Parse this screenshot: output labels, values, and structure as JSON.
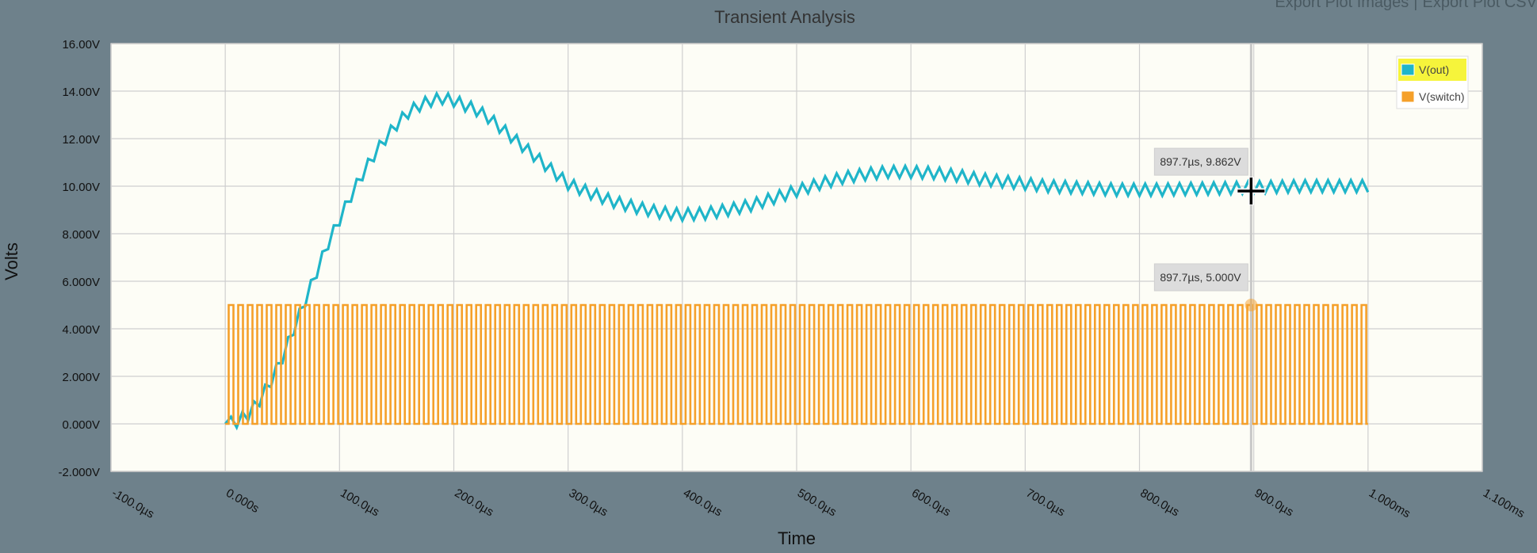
{
  "toolbar": {
    "export_images_label": "Export Plot Images",
    "separator": "|",
    "export_csv_label": "Export Plot CSV"
  },
  "tooltips": [
    {
      "text": "897.7µs, 9.862V",
      "series": "V(out)",
      "x": 897.7,
      "y": 9.862
    },
    {
      "text": "897.7µs, 5.000V",
      "series": "V(switch)",
      "x": 897.7,
      "y": 5.0
    }
  ],
  "cursor_time_us": 897.7,
  "chart_data": {
    "type": "line",
    "title": "Transient Analysis",
    "xlabel": "Time",
    "ylabel": "Volts",
    "xlim": [
      -100,
      1100
    ],
    "ylim": [
      -2,
      16
    ],
    "x_unit": "µs",
    "grid": true,
    "legend_placement": "top-right",
    "x_ticks": [
      {
        "value": -100,
        "label": "-100.0µs"
      },
      {
        "value": 0,
        "label": "0.000s"
      },
      {
        "value": 100,
        "label": "100.0µs"
      },
      {
        "value": 200,
        "label": "200.0µs"
      },
      {
        "value": 300,
        "label": "300.0µs"
      },
      {
        "value": 400,
        "label": "400.0µs"
      },
      {
        "value": 500,
        "label": "500.0µs"
      },
      {
        "value": 600,
        "label": "600.0µs"
      },
      {
        "value": 700,
        "label": "700.0µs"
      },
      {
        "value": 800,
        "label": "800.0µs"
      },
      {
        "value": 900,
        "label": "900.0µs"
      },
      {
        "value": 1000,
        "label": "1.000ms"
      },
      {
        "value": 1100,
        "label": "1.100ms"
      }
    ],
    "y_ticks": [
      {
        "value": 16,
        "label": "16.00V"
      },
      {
        "value": 14,
        "label": "14.00V"
      },
      {
        "value": 12,
        "label": "12.00V"
      },
      {
        "value": 10,
        "label": "10.00V"
      },
      {
        "value": 8,
        "label": "8.000V"
      },
      {
        "value": 6,
        "label": "6.000V"
      },
      {
        "value": 4,
        "label": "4.000V"
      },
      {
        "value": 2,
        "label": "2.000V"
      },
      {
        "value": 0,
        "label": "0.000V"
      },
      {
        "value": -2,
        "label": "-2.000V"
      }
    ],
    "series": [
      {
        "name": "V(out)",
        "color": "#1fb5c9",
        "x": [
          0,
          10,
          20,
          30,
          40,
          50,
          60,
          70,
          80,
          90,
          100,
          110,
          120,
          130,
          140,
          150,
          160,
          170,
          180,
          190,
          200,
          210,
          220,
          230,
          240,
          250,
          260,
          270,
          280,
          290,
          300,
          320,
          340,
          360,
          380,
          400,
          420,
          440,
          460,
          480,
          500,
          520,
          540,
          560,
          580,
          600,
          620,
          640,
          660,
          680,
          700,
          720,
          740,
          760,
          780,
          800,
          820,
          840,
          860,
          880,
          900,
          920,
          940,
          960,
          980,
          1000
        ],
        "values": [
          0,
          0.1,
          0.4,
          1.0,
          1.8,
          2.8,
          4.0,
          5.2,
          6.4,
          7.6,
          8.6,
          9.6,
          10.5,
          11.3,
          12.0,
          12.6,
          13.1,
          13.4,
          13.6,
          13.7,
          13.6,
          13.4,
          13.2,
          12.9,
          12.5,
          12.1,
          11.7,
          11.3,
          10.9,
          10.5,
          10.1,
          9.7,
          9.35,
          9.1,
          8.9,
          8.8,
          8.85,
          9.0,
          9.2,
          9.5,
          9.8,
          10.1,
          10.35,
          10.5,
          10.6,
          10.6,
          10.55,
          10.45,
          10.3,
          10.2,
          10.1,
          10.0,
          9.95,
          9.9,
          9.85,
          9.85,
          9.85,
          9.88,
          9.9,
          9.92,
          9.95,
          9.97,
          10.0,
          10.0,
          10.0,
          10.0
        ],
        "ripple_amplitude": 0.25,
        "ripple_period_us": 10
      },
      {
        "name": "V(switch)",
        "color": "#f5a02a",
        "type": "square",
        "low": 0,
        "high": 5,
        "period_us": 8.33,
        "start_us": 3,
        "end_us": 1000
      }
    ]
  }
}
